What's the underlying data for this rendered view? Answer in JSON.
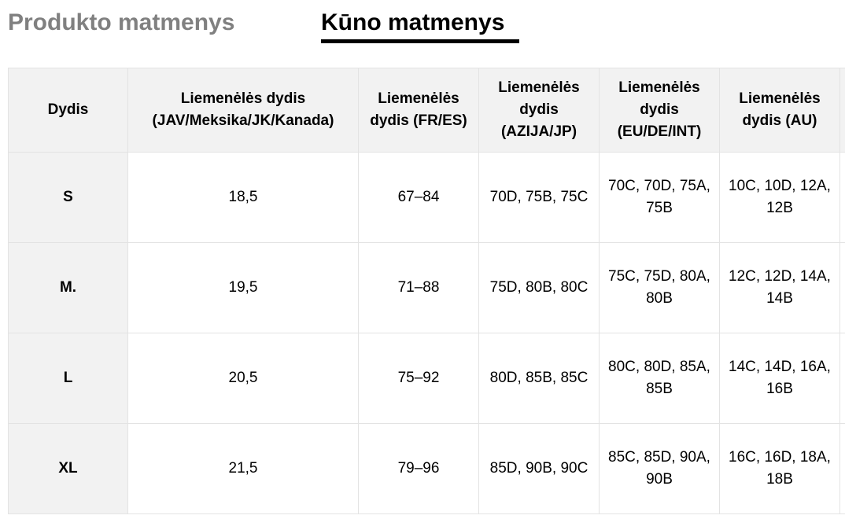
{
  "tabs": {
    "product_label": "Produkto matmenys",
    "body_label": "Kūno matmenys"
  },
  "table": {
    "headers": [
      "Dydis",
      "Liemenėlės dydis (JAV/Meksika/JK/Kanada)",
      "Liemenėlės dydis (FR/ES)",
      "Liemenėlės dydis (AZIJA/JP)",
      "Liemenėlės dydis (EU/DE/INT)",
      "Liemenėlės dydis (AU)"
    ],
    "rows": [
      [
        "S",
        "18,5",
        "67–84",
        "70D, 75B, 75C",
        "70C, 70D, 75A, 75B",
        "10C, 10D, 12A, 12B"
      ],
      [
        "M.",
        "19,5",
        "71–88",
        "75D, 80B, 80C",
        "75C, 75D, 80A, 80B",
        "12C, 12D, 14A, 14B"
      ],
      [
        "L",
        "20,5",
        "75–92",
        "80D, 85B, 85C",
        "80C, 80D, 85A, 85B",
        "14C, 14D, 16A, 16B"
      ],
      [
        "XL",
        "21,5",
        "79–96",
        "85D, 90B, 90C",
        "85C, 85D, 90A, 90B",
        "16C, 16D, 18A, 18B"
      ]
    ]
  }
}
